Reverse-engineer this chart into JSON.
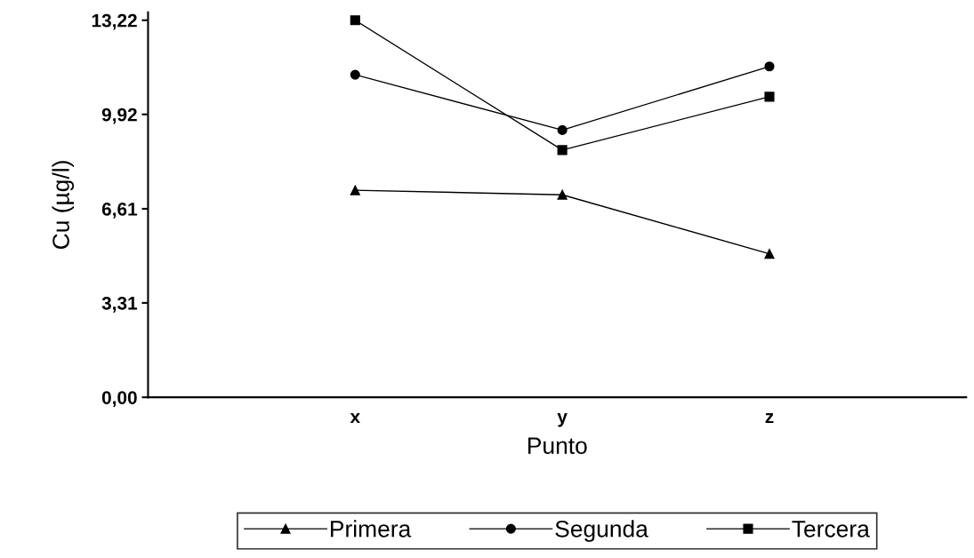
{
  "chart_data": {
    "type": "line",
    "xlabel": "Punto",
    "ylabel": "Cu (µg/l)",
    "categories": [
      "x",
      "y",
      "z"
    ],
    "series": [
      {
        "name": "Primera",
        "color": "#000000",
        "marker": "triangle",
        "values": [
          7.26,
          7.1,
          5.03
        ]
      },
      {
        "name": "Segunda",
        "color": "#000000",
        "marker": "circle",
        "values": [
          11.31,
          9.37,
          11.6
        ]
      },
      {
        "name": "Tercera",
        "color": "#000000",
        "marker": "square",
        "values": [
          13.22,
          8.67,
          10.54
        ]
      }
    ],
    "ylim": [
      0,
      13.5
    ],
    "yticks": [
      {
        "value": 0,
        "label": "0,00"
      },
      {
        "value": 3.31,
        "label": "3,31"
      },
      {
        "value": 6.61,
        "label": "6,61"
      },
      {
        "value": 9.92,
        "label": "9,92"
      },
      {
        "value": 13.22,
        "label": "13,22"
      }
    ],
    "grid": false,
    "legend": "bottom",
    "line_style": "solid"
  }
}
